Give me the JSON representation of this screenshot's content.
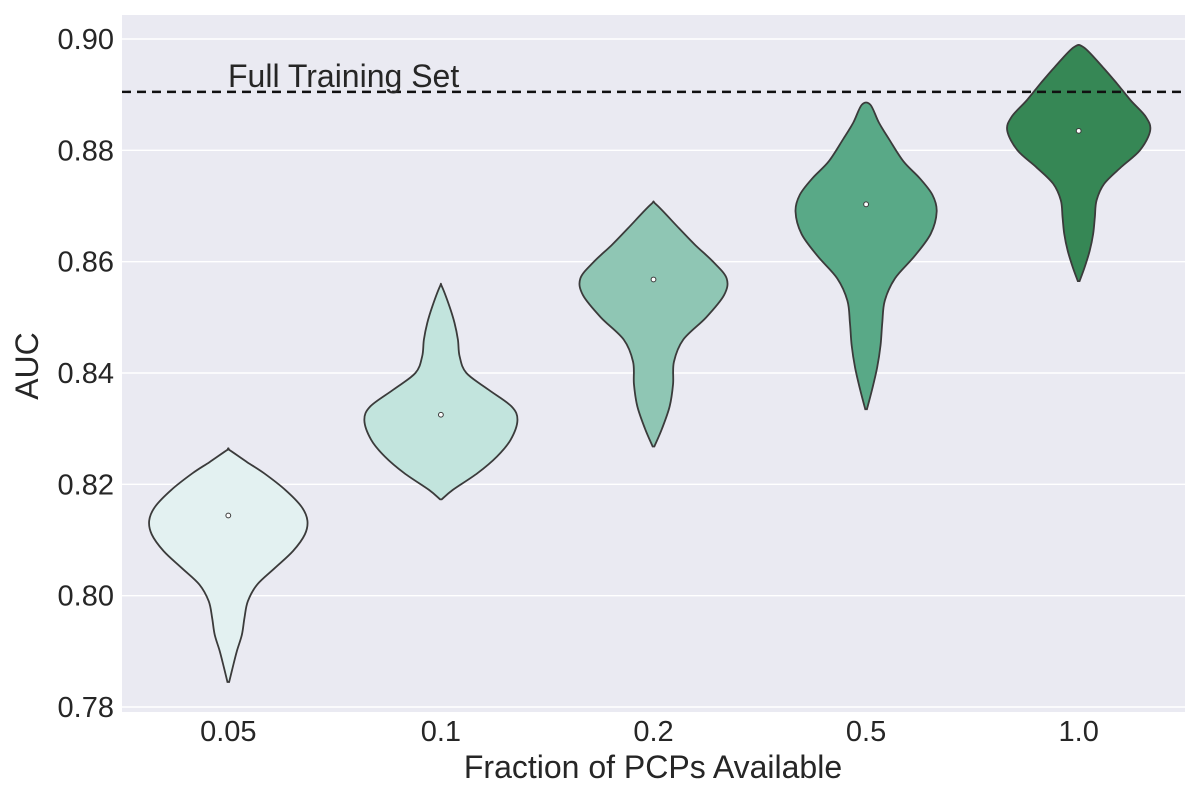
{
  "chart_data": {
    "type": "violin",
    "xlabel": "Fraction of PCPs Available",
    "ylabel": "AUC",
    "ylim": [
      0.778,
      0.905
    ],
    "yticks": [
      0.78,
      0.8,
      0.82,
      0.84,
      0.86,
      0.88,
      0.9
    ],
    "ytick_labels": [
      "0.78",
      "0.80",
      "0.82",
      "0.84",
      "0.86",
      "0.88",
      "0.90"
    ],
    "grid": true,
    "reference_line": {
      "label": "Full Training Set",
      "y": 0.8905,
      "style": "dashed"
    },
    "categories": [
      "0.05",
      "0.1",
      "0.2",
      "0.5",
      "1.0"
    ],
    "series": [
      {
        "category": "0.05",
        "color": "#e3f1f1",
        "min": 0.7845,
        "max": 0.8262,
        "median": 0.8144,
        "density": [
          [
            0.7845,
            0.01
          ],
          [
            0.787,
            0.05
          ],
          [
            0.79,
            0.1
          ],
          [
            0.793,
            0.16
          ],
          [
            0.796,
            0.19
          ],
          [
            0.799,
            0.23
          ],
          [
            0.802,
            0.34
          ],
          [
            0.805,
            0.55
          ],
          [
            0.808,
            0.76
          ],
          [
            0.811,
            0.9
          ],
          [
            0.8135,
            0.93
          ],
          [
            0.816,
            0.86
          ],
          [
            0.819,
            0.67
          ],
          [
            0.822,
            0.42
          ],
          [
            0.824,
            0.22
          ],
          [
            0.8262,
            0.01
          ]
        ]
      },
      {
        "category": "0.1",
        "color": "#c2e4dd",
        "min": 0.8173,
        "max": 0.8556,
        "median": 0.8325,
        "density": [
          [
            0.8173,
            0.01
          ],
          [
            0.819,
            0.14
          ],
          [
            0.822,
            0.43
          ],
          [
            0.825,
            0.66
          ],
          [
            0.828,
            0.82
          ],
          [
            0.8315,
            0.9
          ],
          [
            0.834,
            0.83
          ],
          [
            0.837,
            0.56
          ],
          [
            0.84,
            0.3
          ],
          [
            0.843,
            0.22
          ],
          [
            0.846,
            0.2
          ],
          [
            0.849,
            0.16
          ],
          [
            0.852,
            0.1
          ],
          [
            0.8556,
            0.01
          ]
        ]
      },
      {
        "category": "0.2",
        "color": "#8fc6b4",
        "min": 0.8268,
        "max": 0.8703,
        "median": 0.8568,
        "density": [
          [
            0.8268,
            0.01
          ],
          [
            0.83,
            0.1
          ],
          [
            0.834,
            0.19
          ],
          [
            0.838,
            0.23
          ],
          [
            0.842,
            0.24
          ],
          [
            0.846,
            0.35
          ],
          [
            0.85,
            0.62
          ],
          [
            0.854,
            0.83
          ],
          [
            0.857,
            0.86
          ],
          [
            0.86,
            0.7
          ],
          [
            0.863,
            0.49
          ],
          [
            0.866,
            0.3
          ],
          [
            0.8703,
            0.03
          ]
        ]
      },
      {
        "category": "0.5",
        "color": "#59a987",
        "min": 0.8335,
        "max": 0.8882,
        "median": 0.8703,
        "density": [
          [
            0.8335,
            0.01
          ],
          [
            0.837,
            0.07
          ],
          [
            0.841,
            0.13
          ],
          [
            0.845,
            0.17
          ],
          [
            0.849,
            0.19
          ],
          [
            0.853,
            0.22
          ],
          [
            0.857,
            0.34
          ],
          [
            0.861,
            0.57
          ],
          [
            0.865,
            0.76
          ],
          [
            0.869,
            0.83
          ],
          [
            0.872,
            0.78
          ],
          [
            0.875,
            0.63
          ],
          [
            0.878,
            0.44
          ],
          [
            0.882,
            0.27
          ],
          [
            0.885,
            0.15
          ],
          [
            0.8882,
            0.05
          ]
        ]
      },
      {
        "category": "1.0",
        "color": "#368755",
        "min": 0.8565,
        "max": 0.8985,
        "median": 0.8835,
        "density": [
          [
            0.8565,
            0.01
          ],
          [
            0.859,
            0.07
          ],
          [
            0.862,
            0.13
          ],
          [
            0.865,
            0.17
          ],
          [
            0.868,
            0.19
          ],
          [
            0.871,
            0.21
          ],
          [
            0.874,
            0.3
          ],
          [
            0.877,
            0.5
          ],
          [
            0.88,
            0.72
          ],
          [
            0.8835,
            0.84
          ],
          [
            0.886,
            0.79
          ],
          [
            0.889,
            0.61
          ],
          [
            0.892,
            0.45
          ],
          [
            0.895,
            0.28
          ],
          [
            0.8985,
            0.06
          ]
        ]
      }
    ]
  }
}
